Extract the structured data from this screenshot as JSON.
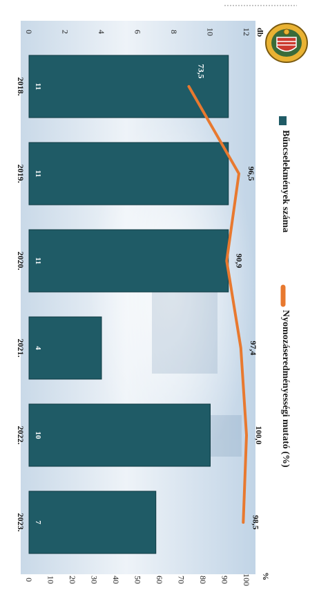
{
  "chart_data": {
    "type": "bar",
    "orientation": "rotated-90-clockwise",
    "categories": [
      "2018.",
      "2019.",
      "2020.",
      "2021.",
      "2022.",
      "2023."
    ],
    "series": [
      {
        "name": "Bűncselekmények száma",
        "kind": "bar",
        "values": [
          11,
          11,
          11,
          4,
          10,
          7
        ],
        "value_labels": [
          "11",
          "11",
          "11",
          "4",
          "10",
          "7"
        ],
        "color": "#1f5b66",
        "axis": "left"
      },
      {
        "name": "Nyomozáseredményességi mutató (%)",
        "kind": "line",
        "values": [
          73.5,
          96.5,
          90.9,
          97.4,
          100.0,
          98.5
        ],
        "value_labels": [
          "73,5",
          "96,5",
          "90,9",
          "97,4",
          "100,0",
          "98,5"
        ],
        "color": "#e8792f",
        "axis": "right"
      }
    ],
    "left_axis": {
      "unit": "db",
      "ylim": [
        0,
        12
      ],
      "ticks": [
        "0",
        "2",
        "4",
        "6",
        "8",
        "10",
        "12"
      ]
    },
    "right_axis": {
      "unit": "%",
      "ylim": [
        0,
        100
      ],
      "ticks": [
        "0",
        "10",
        "20",
        "30",
        "40",
        "50",
        "60",
        "70",
        "80",
        "90",
        "100"
      ]
    },
    "legend_placement": "right",
    "grid": false
  },
  "colors": {
    "bar": "#1f5b66",
    "line": "#e8792f",
    "background_pale": "#e6eef6",
    "background_mid": "#bcd0e2"
  },
  "icons": {
    "logo": "police-emblem-icon"
  }
}
